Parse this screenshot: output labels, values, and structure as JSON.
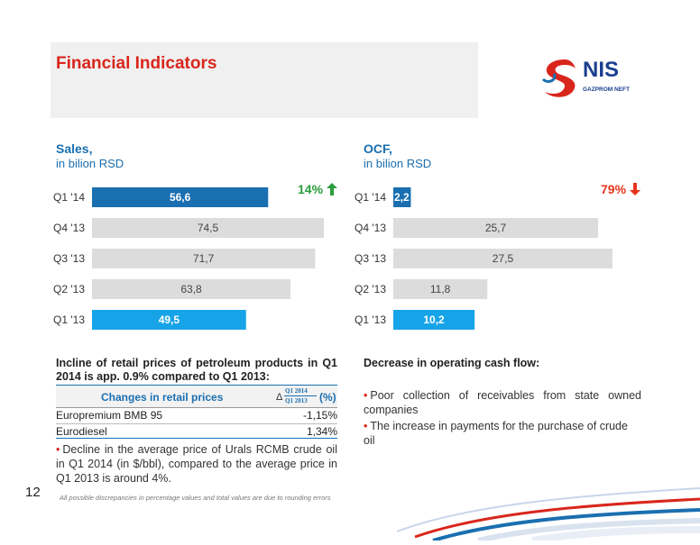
{
  "title": "Financial Indicators",
  "logo": {
    "brand": "NIS",
    "tagline": "GAZPROM NEFT"
  },
  "sales": {
    "title": "Sales,",
    "subtitle": "in bilion RSD",
    "change_pct": "14%",
    "change_direction": "up"
  },
  "ocf": {
    "title": "OCF,",
    "subtitle": "in bilion RSD",
    "change_pct": "79%",
    "change_direction": "down"
  },
  "chart_data": [
    {
      "type": "bar",
      "orientation": "horizontal",
      "categories": [
        "Q1 '14",
        "Q4 '13",
        "Q3 '13",
        "Q2 '13",
        "Q1 '13"
      ],
      "values": [
        56.6,
        74.5,
        71.7,
        63.8,
        49.5
      ],
      "value_labels": [
        "56,6",
        "74,5",
        "71,7",
        "63,8",
        "49,5"
      ],
      "colors": [
        "#1a6fb0",
        "#dcdcdc",
        "#dcdcdc",
        "#dcdcdc",
        "#17a3e8"
      ],
      "xlim": [
        0,
        80
      ]
    },
    {
      "type": "bar",
      "orientation": "horizontal",
      "categories": [
        "Q1 '14",
        "Q4 '13",
        "Q3 '13",
        "Q2 '13",
        "Q1 '13"
      ],
      "values": [
        2.2,
        25.7,
        27.5,
        11.8,
        10.2
      ],
      "value_labels": [
        "2,2",
        "25,7",
        "27,5",
        "11,8",
        "10,2"
      ],
      "colors": [
        "#1a6fb0",
        "#dcdcdc",
        "#dcdcdc",
        "#dcdcdc",
        "#17a3e8"
      ],
      "xlim": [
        0,
        30
      ]
    }
  ],
  "left_text": {
    "heading": "Incline of retail prices of petroleum products in Q1 2014 is app. 0.9% compared to Q1 2013:",
    "table": {
      "col1": "Changes in retail prices",
      "col2_delta": "Δ",
      "col2_num": "Q1 2014",
      "col2_den": "Q1 2013",
      "col2_unit": "(%)",
      "rows": [
        {
          "name": "Europremium BMB 95",
          "value": "-1,15%"
        },
        {
          "name": "Eurodiesel",
          "value": "1,34%"
        }
      ]
    },
    "bullet": "Decline in the average price of Urals RCMB crude oil in Q1 2014 (in $/bbl), compared to the average  price in Q1 2013 is around 4%."
  },
  "right_text": {
    "heading": "Decrease in operating cash flow:",
    "bullets": [
      "Poor collection of receivables from state owned companies",
      "The increase in payments for the purchase of crude oil"
    ]
  },
  "footer": {
    "page_number": "12",
    "note": "All possible discrepancies in percentage values and total values are due to rounding errors"
  },
  "colors": {
    "accent_red": "#d9261c",
    "accent_blue": "#1a6fb0",
    "up_green": "#2a9d3c",
    "down_red": "#e8341c"
  }
}
